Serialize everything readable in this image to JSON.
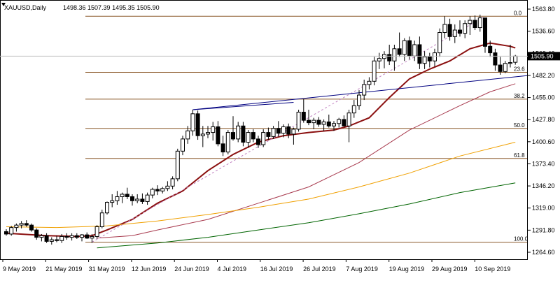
{
  "header": {
    "symbol": "XAUUSD,Daily",
    "ohlc": "1498.36 1507.39 1495.35 1505.90"
  },
  "current_price_label": "1505.90",
  "chart_data": {
    "type": "candlestick",
    "symbol": "XAUUSD",
    "timeframe": "Daily",
    "ylim": [
      1256,
      1575
    ],
    "y_ticks": [
      1563.8,
      1536.6,
      1509.4,
      1482.2,
      1455.0,
      1427.8,
      1400.6,
      1373.4,
      1346.2,
      1319.0,
      1291.8,
      1264.6
    ],
    "x_tick_labels": [
      "9 May 2019",
      "21 May 2019",
      "31 May 2019",
      "12 Jun 2019",
      "24 Jun 2019",
      "4 Jul 2019",
      "16 Jul 2019",
      "26 Jul 2019",
      "7 Aug 2019",
      "19 Aug 2019",
      "29 Aug 2019",
      "10 Sep 2019"
    ],
    "last_close": 1505.9,
    "candles": [
      {
        "o": 1290,
        "h": 1293,
        "l": 1285,
        "c": 1287
      },
      {
        "o": 1287,
        "h": 1297,
        "l": 1285,
        "c": 1295
      },
      {
        "o": 1295,
        "h": 1300,
        "l": 1290,
        "c": 1298
      },
      {
        "o": 1298,
        "h": 1303,
        "l": 1294,
        "c": 1300
      },
      {
        "o": 1300,
        "h": 1304,
        "l": 1296,
        "c": 1298
      },
      {
        "o": 1298,
        "h": 1300,
        "l": 1290,
        "c": 1292
      },
      {
        "o": 1292,
        "h": 1294,
        "l": 1280,
        "c": 1283
      },
      {
        "o": 1283,
        "h": 1287,
        "l": 1278,
        "c": 1285
      },
      {
        "o": 1285,
        "h": 1288,
        "l": 1276,
        "c": 1278
      },
      {
        "o": 1278,
        "h": 1283,
        "l": 1274,
        "c": 1280
      },
      {
        "o": 1280,
        "h": 1285,
        "l": 1277,
        "c": 1279
      },
      {
        "o": 1279,
        "h": 1287,
        "l": 1276,
        "c": 1284
      },
      {
        "o": 1284,
        "h": 1288,
        "l": 1280,
        "c": 1283
      },
      {
        "o": 1283,
        "h": 1288,
        "l": 1279,
        "c": 1285
      },
      {
        "o": 1285,
        "h": 1288,
        "l": 1281,
        "c": 1283
      },
      {
        "o": 1283,
        "h": 1287,
        "l": 1278,
        "c": 1286
      },
      {
        "o": 1286,
        "h": 1289,
        "l": 1281,
        "c": 1282
      },
      {
        "o": 1282,
        "h": 1287,
        "l": 1276,
        "c": 1284
      },
      {
        "o": 1284,
        "h": 1298,
        "l": 1281,
        "c": 1296
      },
      {
        "o": 1296,
        "h": 1317,
        "l": 1294,
        "c": 1313
      },
      {
        "o": 1313,
        "h": 1327,
        "l": 1311,
        "c": 1326
      },
      {
        "o": 1326,
        "h": 1336,
        "l": 1320,
        "c": 1328
      },
      {
        "o": 1328,
        "h": 1340,
        "l": 1323,
        "c": 1333
      },
      {
        "o": 1333,
        "h": 1338,
        "l": 1325,
        "c": 1336
      },
      {
        "o": 1336,
        "h": 1344,
        "l": 1330,
        "c": 1333
      },
      {
        "o": 1333,
        "h": 1336,
        "l": 1322,
        "c": 1328
      },
      {
        "o": 1328,
        "h": 1336,
        "l": 1325,
        "c": 1330
      },
      {
        "o": 1330,
        "h": 1337,
        "l": 1324,
        "c": 1327
      },
      {
        "o": 1327,
        "h": 1338,
        "l": 1323,
        "c": 1335
      },
      {
        "o": 1335,
        "h": 1344,
        "l": 1331,
        "c": 1342
      },
      {
        "o": 1342,
        "h": 1347,
        "l": 1335,
        "c": 1340
      },
      {
        "o": 1340,
        "h": 1345,
        "l": 1337,
        "c": 1343
      },
      {
        "o": 1343,
        "h": 1352,
        "l": 1340,
        "c": 1346
      },
      {
        "o": 1346,
        "h": 1358,
        "l": 1342,
        "c": 1355
      },
      {
        "o": 1355,
        "h": 1392,
        "l": 1352,
        "c": 1389
      },
      {
        "o": 1389,
        "h": 1408,
        "l": 1384,
        "c": 1404
      },
      {
        "o": 1404,
        "h": 1420,
        "l": 1398,
        "c": 1414
      },
      {
        "o": 1414,
        "h": 1440,
        "l": 1408,
        "c": 1435
      },
      {
        "o": 1435,
        "h": 1439,
        "l": 1403,
        "c": 1408
      },
      {
        "o": 1408,
        "h": 1420,
        "l": 1394,
        "c": 1410
      },
      {
        "o": 1410,
        "h": 1420,
        "l": 1405,
        "c": 1412
      },
      {
        "o": 1412,
        "h": 1425,
        "l": 1402,
        "c": 1419
      },
      {
        "o": 1419,
        "h": 1426,
        "l": 1395,
        "c": 1398
      },
      {
        "o": 1398,
        "h": 1408,
        "l": 1383,
        "c": 1388
      },
      {
        "o": 1388,
        "h": 1415,
        "l": 1385,
        "c": 1412
      },
      {
        "o": 1412,
        "h": 1432,
        "l": 1402,
        "c": 1404
      },
      {
        "o": 1404,
        "h": 1425,
        "l": 1400,
        "c": 1420
      },
      {
        "o": 1420,
        "h": 1425,
        "l": 1395,
        "c": 1400
      },
      {
        "o": 1400,
        "h": 1415,
        "l": 1393,
        "c": 1412
      },
      {
        "o": 1412,
        "h": 1416,
        "l": 1400,
        "c": 1404
      },
      {
        "o": 1404,
        "h": 1408,
        "l": 1393,
        "c": 1397
      },
      {
        "o": 1397,
        "h": 1416,
        "l": 1394,
        "c": 1412
      },
      {
        "o": 1412,
        "h": 1418,
        "l": 1403,
        "c": 1407
      },
      {
        "o": 1407,
        "h": 1420,
        "l": 1404,
        "c": 1417
      },
      {
        "o": 1417,
        "h": 1426,
        "l": 1407,
        "c": 1411
      },
      {
        "o": 1411,
        "h": 1422,
        "l": 1406,
        "c": 1419
      },
      {
        "o": 1419,
        "h": 1423,
        "l": 1405,
        "c": 1410
      },
      {
        "o": 1410,
        "h": 1418,
        "l": 1397,
        "c": 1416
      },
      {
        "o": 1416,
        "h": 1440,
        "l": 1413,
        "c": 1437
      },
      {
        "o": 1437,
        "h": 1453,
        "l": 1424,
        "c": 1427
      },
      {
        "o": 1427,
        "h": 1440,
        "l": 1421,
        "c": 1424
      },
      {
        "o": 1424,
        "h": 1430,
        "l": 1416,
        "c": 1427
      },
      {
        "o": 1427,
        "h": 1431,
        "l": 1419,
        "c": 1422
      },
      {
        "o": 1422,
        "h": 1428,
        "l": 1414,
        "c": 1425
      },
      {
        "o": 1425,
        "h": 1434,
        "l": 1418,
        "c": 1420
      },
      {
        "o": 1420,
        "h": 1426,
        "l": 1414,
        "c": 1423
      },
      {
        "o": 1423,
        "h": 1430,
        "l": 1418,
        "c": 1428
      },
      {
        "o": 1428,
        "h": 1433,
        "l": 1419,
        "c": 1420
      },
      {
        "o": 1420,
        "h": 1440,
        "l": 1400,
        "c": 1436
      },
      {
        "o": 1436,
        "h": 1452,
        "l": 1430,
        "c": 1445
      },
      {
        "o": 1445,
        "h": 1464,
        "l": 1440,
        "c": 1458
      },
      {
        "o": 1458,
        "h": 1477,
        "l": 1452,
        "c": 1471
      },
      {
        "o": 1471,
        "h": 1480,
        "l": 1465,
        "c": 1475
      },
      {
        "o": 1475,
        "h": 1505,
        "l": 1470,
        "c": 1500
      },
      {
        "o": 1500,
        "h": 1510,
        "l": 1490,
        "c": 1503
      },
      {
        "o": 1503,
        "h": 1512,
        "l": 1491,
        "c": 1508
      },
      {
        "o": 1508,
        "h": 1520,
        "l": 1495,
        "c": 1500
      },
      {
        "o": 1500,
        "h": 1520,
        "l": 1488,
        "c": 1515
      },
      {
        "o": 1515,
        "h": 1535,
        "l": 1505,
        "c": 1508
      },
      {
        "o": 1508,
        "h": 1528,
        "l": 1500,
        "c": 1525
      },
      {
        "o": 1525,
        "h": 1530,
        "l": 1502,
        "c": 1506
      },
      {
        "o": 1506,
        "h": 1525,
        "l": 1500,
        "c": 1520
      },
      {
        "o": 1520,
        "h": 1530,
        "l": 1490,
        "c": 1497
      },
      {
        "o": 1497,
        "h": 1512,
        "l": 1490,
        "c": 1505
      },
      {
        "o": 1505,
        "h": 1510,
        "l": 1492,
        "c": 1500
      },
      {
        "o": 1500,
        "h": 1515,
        "l": 1493,
        "c": 1510
      },
      {
        "o": 1510,
        "h": 1540,
        "l": 1505,
        "c": 1535
      },
      {
        "o": 1535,
        "h": 1555,
        "l": 1528,
        "c": 1545
      },
      {
        "o": 1545,
        "h": 1552,
        "l": 1525,
        "c": 1530
      },
      {
        "o": 1530,
        "h": 1545,
        "l": 1522,
        "c": 1538
      },
      {
        "o": 1538,
        "h": 1550,
        "l": 1530,
        "c": 1534
      },
      {
        "o": 1534,
        "h": 1550,
        "l": 1528,
        "c": 1546
      },
      {
        "o": 1546,
        "h": 1555,
        "l": 1532,
        "c": 1550
      },
      {
        "o": 1550,
        "h": 1556,
        "l": 1538,
        "c": 1541
      },
      {
        "o": 1541,
        "h": 1557,
        "l": 1536,
        "c": 1553
      },
      {
        "o": 1553,
        "h": 1553,
        "l": 1510,
        "c": 1518
      },
      {
        "o": 1518,
        "h": 1525,
        "l": 1505,
        "c": 1510
      },
      {
        "o": 1510,
        "h": 1515,
        "l": 1488,
        "c": 1495
      },
      {
        "o": 1495,
        "h": 1505,
        "l": 1483,
        "c": 1487
      },
      {
        "o": 1487,
        "h": 1500,
        "l": 1485,
        "c": 1497
      },
      {
        "o": 1497,
        "h": 1520,
        "l": 1492,
        "c": 1498
      },
      {
        "o": 1498.36,
        "h": 1507.39,
        "l": 1495.35,
        "c": 1505.9
      }
    ],
    "moving_averages": [
      {
        "color": "#8b1010",
        "points": [
          [
            0,
            1288
          ],
          [
            8,
            1285
          ],
          [
            14,
            1284
          ],
          [
            17,
            1285
          ],
          [
            20,
            1292
          ],
          [
            25,
            1305
          ],
          [
            30,
            1325
          ],
          [
            35,
            1340
          ],
          [
            40,
            1365
          ],
          [
            45,
            1385
          ],
          [
            50,
            1400
          ],
          [
            55,
            1408
          ],
          [
            60,
            1412
          ],
          [
            65,
            1415
          ],
          [
            68,
            1420
          ],
          [
            72,
            1430
          ],
          [
            76,
            1455
          ],
          [
            80,
            1478
          ],
          [
            84,
            1490
          ],
          [
            88,
            1500
          ],
          [
            92,
            1515
          ],
          [
            96,
            1522
          ],
          [
            100,
            1518
          ],
          [
            101,
            1516
          ]
        ]
      },
      {
        "color": "#a83a4e",
        "points": [
          [
            18,
            1282
          ],
          [
            25,
            1285
          ],
          [
            30,
            1292
          ],
          [
            40,
            1305
          ],
          [
            50,
            1325
          ],
          [
            60,
            1345
          ],
          [
            70,
            1375
          ],
          [
            80,
            1415
          ],
          [
            90,
            1445
          ],
          [
            96,
            1462
          ],
          [
            101,
            1472
          ]
        ]
      },
      {
        "color": "#f0a000",
        "points": [
          [
            0,
            1296
          ],
          [
            10,
            1295
          ],
          [
            20,
            1297
          ],
          [
            30,
            1303
          ],
          [
            40,
            1311
          ],
          [
            50,
            1320
          ],
          [
            60,
            1330
          ],
          [
            70,
            1345
          ],
          [
            80,
            1362
          ],
          [
            90,
            1383
          ],
          [
            101,
            1400
          ]
        ]
      },
      {
        "color": "#006400",
        "points": [
          [
            18,
            1270
          ],
          [
            30,
            1276
          ],
          [
            40,
            1283
          ],
          [
            50,
            1292
          ],
          [
            60,
            1301
          ],
          [
            70,
            1312
          ],
          [
            80,
            1324
          ],
          [
            90,
            1338
          ],
          [
            101,
            1350
          ]
        ]
      }
    ],
    "fibonacci": [
      {
        "label": "0.0",
        "price": 1555
      },
      {
        "label": "23.6",
        "price": 1486
      },
      {
        "label": "38.2",
        "price": 1453
      },
      {
        "label": "50.0",
        "price": 1417
      },
      {
        "label": "61.8",
        "price": 1380
      },
      {
        "label": "100.0",
        "price": 1277
      }
    ],
    "trendline": {
      "color": "#000080",
      "x1": 37,
      "y1": 1440,
      "x2": 101,
      "y2": 1482
    },
    "channel_top": {
      "color": "#000080",
      "x1": 37,
      "y1": 1440,
      "x2": 57,
      "y2": 1449
    },
    "fib_diagonal": {
      "color": "#c080c0",
      "x1": 17,
      "y1": 1277,
      "x2": 95,
      "y2": 1555
    }
  }
}
